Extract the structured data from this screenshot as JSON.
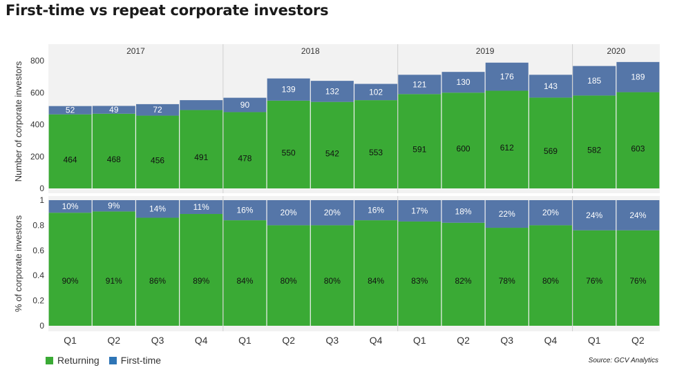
{
  "title": "First-time vs repeat corporate investors",
  "source": "Source: GCV Analytics",
  "legend": [
    {
      "label": "Returning",
      "color": "#3aaa35"
    },
    {
      "label": "First-time",
      "color": "#2e75b6"
    }
  ],
  "colors": {
    "returning": "#3aaa35",
    "first_time": "#5576a8",
    "panel_bg": "#f2f2f2",
    "grid": "#d9d9d9"
  },
  "chart_data": [
    {
      "type": "bar",
      "stacked": true,
      "ylabel": "Number of corporate investors",
      "ylim": [
        0,
        800
      ],
      "yticks": [
        "0",
        "200",
        "400",
        "600",
        "800"
      ],
      "years": [
        "2017",
        "2018",
        "2019",
        "2020"
      ],
      "year_quarter_counts": [
        4,
        4,
        4,
        2
      ],
      "categories": [
        "Q1",
        "Q2",
        "Q3",
        "Q4",
        "Q1",
        "Q2",
        "Q3",
        "Q4",
        "Q1",
        "Q2",
        "Q3",
        "Q4",
        "Q1",
        "Q2"
      ],
      "series": [
        {
          "name": "Returning",
          "values": [
            464,
            468,
            456,
            491,
            478,
            550,
            542,
            553,
            591,
            600,
            612,
            569,
            582,
            603
          ],
          "labels": [
            "464",
            "468",
            "456",
            "491",
            "478",
            "550",
            "542",
            "553",
            "591",
            "600",
            "612",
            "569",
            "582",
            "603"
          ]
        },
        {
          "name": "First-time",
          "values": [
            52,
            49,
            72,
            62,
            90,
            139,
            132,
            102,
            121,
            130,
            176,
            143,
            185,
            189
          ],
          "labels": [
            "52",
            "49",
            "72",
            "",
            "90",
            "139",
            "132",
            "102",
            "121",
            "130",
            "176",
            "143",
            "185",
            "189"
          ]
        }
      ]
    },
    {
      "type": "bar",
      "stacked": true,
      "ylabel": "% of corporate investors",
      "ylim": [
        0,
        1
      ],
      "yticks": [
        "0",
        "0.2",
        "0.4",
        "0.6",
        "0.8",
        "1"
      ],
      "categories": [
        "Q1",
        "Q2",
        "Q3",
        "Q4",
        "Q1",
        "Q2",
        "Q3",
        "Q4",
        "Q1",
        "Q2",
        "Q3",
        "Q4",
        "Q1",
        "Q2"
      ],
      "series": [
        {
          "name": "Returning",
          "values": [
            0.9,
            0.91,
            0.86,
            0.89,
            0.84,
            0.8,
            0.8,
            0.84,
            0.83,
            0.82,
            0.78,
            0.8,
            0.76,
            0.76
          ],
          "labels": [
            "90%",
            "91%",
            "86%",
            "89%",
            "84%",
            "80%",
            "80%",
            "84%",
            "83%",
            "82%",
            "78%",
            "80%",
            "76%",
            "76%"
          ]
        },
        {
          "name": "First-time",
          "values": [
            0.1,
            0.09,
            0.14,
            0.11,
            0.16,
            0.2,
            0.2,
            0.16,
            0.17,
            0.18,
            0.22,
            0.2,
            0.24,
            0.24
          ],
          "labels": [
            "10%",
            "9%",
            "14%",
            "11%",
            "16%",
            "20%",
            "20%",
            "16%",
            "17%",
            "18%",
            "22%",
            "20%",
            "24%",
            "24%"
          ]
        }
      ]
    }
  ]
}
